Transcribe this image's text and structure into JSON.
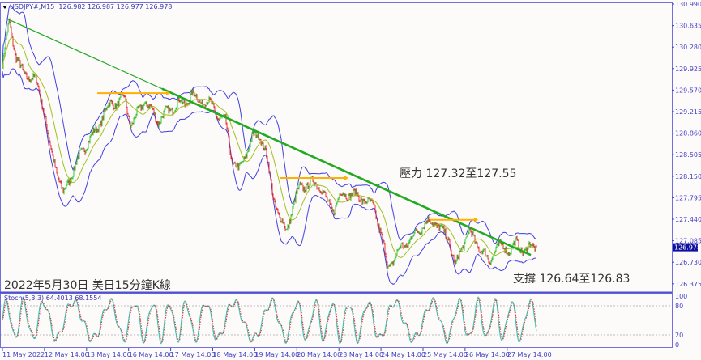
{
  "header": {
    "symbol": "USDJPY#,M15",
    "ohlc": "126.982 126.987 126.977 126.978"
  },
  "title": "2022年5月30日 美日15分鐘K線",
  "annotations": {
    "resistance": "壓力 127.32至127.55",
    "support": "支撐 126.64至126.83"
  },
  "current_price": "126.978",
  "stoch": {
    "label": "Stoch(5,3,3) 64.4013 68.1554",
    "levels": [
      "100",
      "80",
      "20",
      "0"
    ]
  },
  "colors": {
    "bands": "#4040e0",
    "trendline": "#22aa22",
    "arrow": "#ffb000",
    "bull": "#20c020",
    "bear": "#e02020",
    "stoch_main": "#30c0b0",
    "stoch_signal": "#e03030",
    "axis": "#4040c8"
  },
  "chart_data": {
    "type": "candlestick",
    "indicators": [
      "Bollinger Bands",
      "Moving averages",
      "Stochastic(5,3,3)"
    ],
    "y_ticks": [
      "130.990",
      "130.635",
      "130.280",
      "129.925",
      "129.570",
      "129.215",
      "128.860",
      "128.505",
      "128.150",
      "127.795",
      "127.440",
      "127.085",
      "126.730",
      "126.375"
    ],
    "ylim": [
      126.3,
      131.0
    ],
    "x_ticks": [
      "11 May 2022",
      "12 May 14:00",
      "13 May 14:00",
      "16 May 14:00",
      "17 May 14:00",
      "18 May 14:00",
      "19 May 14:00",
      "20 May 14:00",
      "23 May 14:00",
      "24 May 14:00",
      "25 May 14:00",
      "26 May 14:00",
      "27 May 14:00"
    ],
    "close_path": [
      129.99,
      130.72,
      130.12,
      129.86,
      129.79,
      129.72,
      129.32,
      128.65,
      128.25,
      127.85,
      128.12,
      128.39,
      128.59,
      128.79,
      128.92,
      129.19,
      129.35,
      129.35,
      129.46,
      128.99,
      129.19,
      129.39,
      129.25,
      129.05,
      129.19,
      129.25,
      129.39,
      129.32,
      129.52,
      129.39,
      129.39,
      129.32,
      129.12,
      129.05,
      128.39,
      128.25,
      128.52,
      128.79,
      128.85,
      128.52,
      127.85,
      127.45,
      127.25,
      127.65,
      127.99,
      127.99,
      128.05,
      127.99,
      127.72,
      127.59,
      127.85,
      127.85,
      127.85,
      127.79,
      127.72,
      127.65,
      127.19,
      126.65,
      126.79,
      126.99,
      127.05,
      127.19,
      127.32,
      127.39,
      127.39,
      127.25,
      127.12,
      126.65,
      126.99,
      127.25,
      127.05,
      126.92,
      126.72,
      126.99,
      126.99,
      126.92,
      127.05,
      126.92,
      126.99,
      126.98
    ],
    "trendline": {
      "start": 130.75,
      "end": 126.85
    },
    "levels": [
      129.52,
      128.12,
      127.43
    ]
  }
}
